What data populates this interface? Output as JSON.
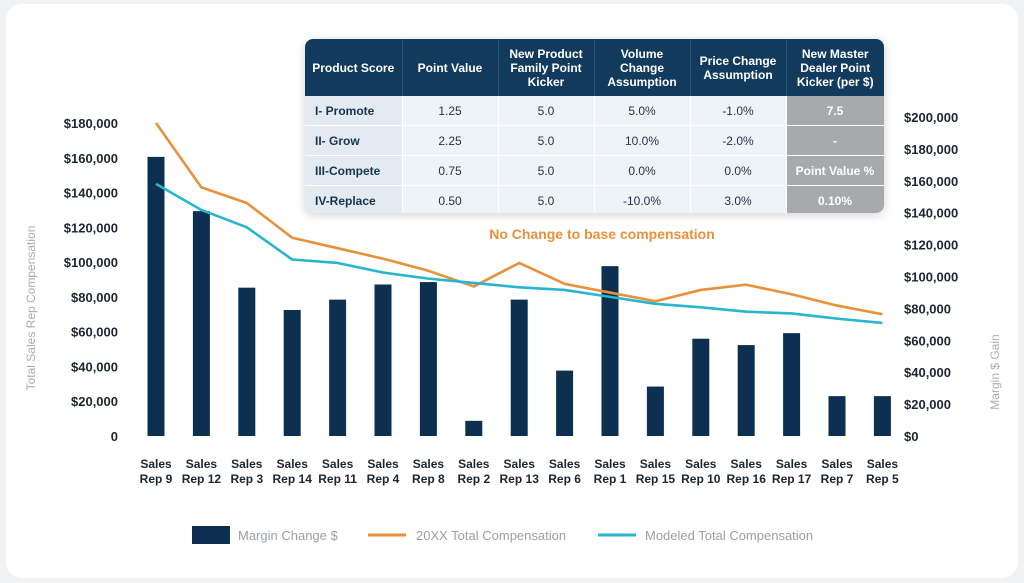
{
  "chart_data": {
    "type": "bar+line",
    "categories": [
      "Sales\nRep 9",
      "Sales\nRep 12",
      "Sales\nRep 3",
      "Sales\nRep 14",
      "Sales\nRep 11",
      "Sales\nRep 4",
      "Sales\nRep 8",
      "Sales\nRep 2",
      "Sales\nRep 13",
      "Sales\nRep 6",
      "Sales\nRep 1",
      "Sales\nRep 15",
      "Sales\nRep 10",
      "Sales\nRep 16",
      "Sales\nRep 17",
      "Sales\nRep 7",
      "Sales\nRep 5"
    ],
    "ylabel_left": "Total Sales Rep Compensation",
    "ylabel_right": "Margin $ Gain",
    "ylim_left": [
      0,
      180000
    ],
    "ylim_right": [
      0,
      200000
    ],
    "left_ticks": [
      "0",
      "$20,000",
      "$40,000",
      "$60,000",
      "$80,000",
      "$100,000",
      "$120,000",
      "$140,000",
      "$160,000",
      "$180,000"
    ],
    "right_ticks": [
      "$0",
      "$20,000",
      "$40,000",
      "$60,000",
      "$80,000",
      "$100,000",
      "$120,000",
      "$140,000",
      "$160,000",
      "$180,000",
      "$200,000"
    ],
    "annotation": "No Change to base compensation",
    "series": [
      {
        "name": "Margin Change $",
        "kind": "bar",
        "axis": "right",
        "color": "#0d3050",
        "values": [
          175000,
          141000,
          93000,
          79000,
          85500,
          95000,
          96500,
          9500,
          85500,
          41000,
          106500,
          31000,
          61000,
          57000,
          64500,
          25000,
          25000
        ]
      },
      {
        "name": "20XX Total Compensation",
        "kind": "line",
        "axis": "left",
        "color": "#e8913a",
        "values": [
          180000,
          143000,
          134000,
          114000,
          108000,
          102000,
          95000,
          86000,
          99500,
          87500,
          82500,
          77500,
          84000,
          87000,
          81500,
          75000,
          70000
        ]
      },
      {
        "name": "Modeled Total Compensation",
        "kind": "line",
        "axis": "left",
        "color": "#27b5cf",
        "values": [
          145000,
          130000,
          120000,
          101500,
          99500,
          94000,
          90500,
          88000,
          85500,
          84000,
          80000,
          76000,
          74000,
          71500,
          70500,
          67500,
          65000
        ]
      }
    ],
    "legend": "bottom"
  },
  "table": {
    "headers": [
      "Product Score",
      "Point Value",
      "New Product Family Point Kicker",
      "Volume Change Assumption",
      "Price Change Assumption",
      "New Master Dealer Point Kicker (per $)"
    ],
    "rows": [
      [
        "I- Promote",
        "1.25",
        "5.0",
        "5.0%",
        "-1.0%",
        "7.5"
      ],
      [
        "II- Grow",
        "2.25",
        "5.0",
        "10.0%",
        "-2.0%",
        "-"
      ],
      [
        "III-Compete",
        "0.75",
        "5.0",
        "0.0%",
        "0.0%",
        "Point Value %"
      ],
      [
        "IV-Replace",
        "0.50",
        "5.0",
        "-10.0%",
        "3.0%",
        "0.10%"
      ]
    ]
  }
}
